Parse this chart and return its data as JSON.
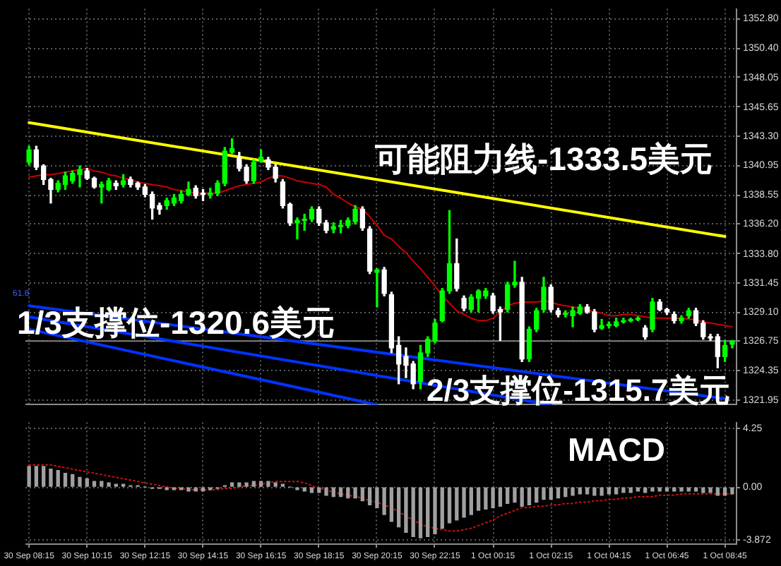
{
  "chart_data": [
    {
      "type": "candlestick",
      "categories": [
        "30 Sep 08:15",
        null,
        null,
        null,
        null,
        null,
        null,
        null,
        "30 Sep 10:15",
        null,
        null,
        null,
        null,
        null,
        null,
        null,
        "30 Sep 12:15",
        null,
        null,
        null,
        null,
        null,
        null,
        null,
        "30 Sep 14:15",
        null,
        null,
        null,
        null,
        null,
        null,
        null,
        "30 Sep 16:15",
        null,
        null,
        null,
        null,
        null,
        null,
        null,
        "30 Sep 18:15",
        null,
        null,
        null,
        null,
        null,
        null,
        null,
        "30 Sep 20:15",
        null,
        null,
        null,
        null,
        null,
        null,
        null,
        "30 Sep 22:15",
        null,
        null,
        null,
        null,
        null,
        null,
        null,
        "1 Oct 00:15",
        null,
        null,
        null,
        null,
        null,
        null,
        null,
        "1 Oct 02:15",
        null,
        null,
        null,
        null,
        null,
        null,
        null,
        "1 Oct 04:15",
        null,
        null,
        null,
        null,
        null,
        null,
        null,
        "1 Oct 06:45",
        null,
        null,
        null,
        null,
        null,
        null,
        null,
        "1 Oct 08:45",
        null
      ],
      "ohlc": [
        [
          1341.2,
          1342.5,
          1341.0,
          1342.2
        ],
        [
          1342.2,
          1342.5,
          1340.6,
          1340.8
        ],
        [
          1340.9,
          1341.0,
          1339.4,
          1339.8
        ],
        [
          1339.8,
          1339.9,
          1337.9,
          1339.0
        ],
        [
          1339.0,
          1339.7,
          1338.8,
          1339.5
        ],
        [
          1339.4,
          1340.4,
          1339.0,
          1340.1
        ],
        [
          1339.7,
          1340.5,
          1339.5,
          1340.3
        ],
        [
          1340.2,
          1340.9,
          1339.2,
          1340.6
        ],
        [
          1340.5,
          1340.7,
          1339.8,
          1339.9
        ],
        [
          1339.9,
          1340.0,
          1339.1,
          1339.2
        ],
        [
          1339.2,
          1339.6,
          1337.9,
          1339.4
        ],
        [
          1339.0,
          1339.9,
          1338.9,
          1339.7
        ],
        [
          1339.5,
          1339.7,
          1339.0,
          1339.3
        ],
        [
          1339.4,
          1340.2,
          1339.2,
          1339.7
        ],
        [
          1339.8,
          1340.0,
          1339.2,
          1339.4
        ],
        [
          1339.5,
          1339.6,
          1339.0,
          1339.2
        ],
        [
          1339.2,
          1339.4,
          1338.4,
          1338.6
        ],
        [
          1338.6,
          1338.8,
          1336.6,
          1337.5
        ],
        [
          1337.7,
          1337.9,
          1337.0,
          1337.4
        ],
        [
          1337.7,
          1338.3,
          1337.4,
          1338.1
        ],
        [
          1337.9,
          1338.6,
          1337.7,
          1338.3
        ],
        [
          1338.1,
          1338.9,
          1337.9,
          1338.6
        ],
        [
          1338.6,
          1339.6,
          1338.5,
          1339.0
        ],
        [
          1339.1,
          1339.3,
          1338.3,
          1338.5
        ],
        [
          1338.7,
          1339.0,
          1338.1,
          1338.6
        ],
        [
          1338.6,
          1339.1,
          1338.3,
          1338.7
        ],
        [
          1338.7,
          1339.7,
          1338.5,
          1339.5
        ],
        [
          1339.5,
          1342.4,
          1339.3,
          1342.1
        ],
        [
          1342.0,
          1343.1,
          1341.9,
          1342.3
        ],
        [
          1341.5,
          1342.0,
          1340.5,
          1340.7
        ],
        [
          1340.8,
          1341.0,
          1339.5,
          1339.7
        ],
        [
          1339.7,
          1341.4,
          1339.5,
          1341.2
        ],
        [
          1341.3,
          1342.2,
          1341.2,
          1341.6
        ],
        [
          1341.4,
          1341.6,
          1340.6,
          1340.8
        ],
        [
          1340.8,
          1341.0,
          1339.6,
          1339.9
        ],
        [
          1339.6,
          1339.8,
          1337.5,
          1337.7
        ],
        [
          1337.8,
          1337.9,
          1336.1,
          1336.3
        ],
        [
          1336.3,
          1336.7,
          1335.0,
          1336.5
        ],
        [
          1336.5,
          1337.0,
          1335.7,
          1336.6
        ],
        [
          1336.6,
          1337.6,
          1336.4,
          1337.4
        ],
        [
          1337.4,
          1337.6,
          1336.1,
          1336.3
        ],
        [
          1336.3,
          1336.5,
          1335.5,
          1335.7
        ],
        [
          1335.8,
          1336.3,
          1335.5,
          1336.0
        ],
        [
          1336.0,
          1336.5,
          1335.5,
          1336.1
        ],
        [
          1336.1,
          1336.7,
          1335.9,
          1336.5
        ],
        [
          1336.4,
          1337.7,
          1336.2,
          1337.4
        ],
        [
          1337.4,
          1337.6,
          1335.7,
          1335.9
        ],
        [
          1335.8,
          1336.0,
          1332.2,
          1332.4
        ],
        [
          1332.3,
          1332.6,
          1329.5,
          1332.5
        ],
        [
          1332.5,
          1332.7,
          1330.4,
          1330.6
        ],
        [
          1330.5,
          1330.7,
          1325.8,
          1326.2
        ],
        [
          1326.4,
          1327.1,
          1323.3,
          1324.9
        ],
        [
          1325.5,
          1326.2,
          1323.8,
          1324.8
        ],
        [
          1324.9,
          1325.1,
          1322.9,
          1323.3
        ],
        [
          1323.5,
          1326.4,
          1322.9,
          1325.8
        ],
        [
          1325.8,
          1327.1,
          1325.5,
          1326.9
        ],
        [
          1326.8,
          1328.5,
          1326.6,
          1328.2
        ],
        [
          1328.4,
          1331.0,
          1328.3,
          1330.8
        ],
        [
          1330.8,
          1337.3,
          1330.6,
          1333.0
        ],
        [
          1333.0,
          1335.0,
          1330.8,
          1331.0
        ],
        [
          1330.2,
          1330.4,
          1329.2,
          1329.4
        ],
        [
          1329.3,
          1330.5,
          1329.1,
          1330.3
        ],
        [
          1330.2,
          1330.9,
          1329.1,
          1330.8
        ],
        [
          1330.4,
          1331.0,
          1330.2,
          1330.8
        ],
        [
          1330.4,
          1330.6,
          1329.0,
          1329.2
        ],
        [
          1329.3,
          1329.5,
          1326.8,
          1329.1
        ],
        [
          1329.3,
          1331.5,
          1329.1,
          1331.3
        ],
        [
          1331.3,
          1333.2,
          1331.1,
          1331.5
        ],
        [
          1331.5,
          1331.9,
          1325.1,
          1325.3
        ],
        [
          1325.3,
          1327.9,
          1325.1,
          1327.7
        ],
        [
          1327.7,
          1329.4,
          1327.5,
          1329.2
        ],
        [
          1329.3,
          1331.9,
          1329.1,
          1331.1
        ],
        [
          1331.1,
          1331.3,
          1329.1,
          1329.3
        ],
        [
          1329.2,
          1329.4,
          1328.7,
          1328.9
        ],
        [
          1328.9,
          1329.2,
          1328.7,
          1329.0
        ],
        [
          1328.8,
          1329.5,
          1327.9,
          1329.2
        ],
        [
          1329.0,
          1329.7,
          1328.9,
          1329.5
        ],
        [
          1329.5,
          1329.7,
          1329.0,
          1329.1
        ],
        [
          1329.1,
          1329.3,
          1327.5,
          1327.7
        ],
        [
          1327.8,
          1328.5,
          1327.7,
          1328.0
        ],
        [
          1328.0,
          1328.3,
          1327.8,
          1328.1
        ],
        [
          1328.0,
          1328.6,
          1327.9,
          1328.3
        ],
        [
          1328.3,
          1328.6,
          1328.2,
          1328.4
        ],
        [
          1328.4,
          1328.6,
          1328.3,
          1328.5
        ],
        [
          1328.5,
          1328.7,
          1328.4,
          1328.6
        ],
        [
          1327.8,
          1328.0,
          1326.9,
          1327.1
        ],
        [
          1327.7,
          1330.2,
          1327.5,
          1329.9
        ],
        [
          1329.9,
          1330.1,
          1329.2,
          1329.3
        ],
        [
          1329.3,
          1329.4,
          1328.9,
          1329.1
        ],
        [
          1328.9,
          1329.1,
          1328.2,
          1328.4
        ],
        [
          1328.4,
          1328.8,
          1328.2,
          1328.6
        ],
        [
          1328.8,
          1329.4,
          1328.6,
          1329.2
        ],
        [
          1329.2,
          1329.4,
          1328.0,
          1328.2
        ],
        [
          1328.2,
          1328.4,
          1326.9,
          1327.1
        ],
        [
          1327.1,
          1327.3,
          1326.8,
          1327.0
        ],
        [
          1327.1,
          1327.3,
          1324.6,
          1325.5
        ],
        [
          1325.5,
          1326.8,
          1325.1,
          1326.4
        ],
        [
          1326.5,
          1326.8,
          1326.2,
          1326.75
        ]
      ],
      "colors": [
        "#00ff00",
        "#ffffff",
        "#ffffff",
        "#ffffff",
        "#00ff00",
        "#00ff00",
        "#00ff00",
        "#00ff00",
        "#ffffff",
        "#ffffff",
        "#00ff00",
        "#00ff00",
        "#ffffff",
        "#00ff00",
        "#ffffff",
        "#ffffff",
        "#ffffff",
        "#ffffff",
        "#ffffff",
        "#00ff00",
        "#00ff00",
        "#00ff00",
        "#00ff00",
        "#ffffff",
        "#ffffff",
        "#00ff00",
        "#00ff00",
        "#00ff00",
        "#00ff00",
        "#ffffff",
        "#ffffff",
        "#00ff00",
        "#00ff00",
        "#ffffff",
        "#ffffff",
        "#ffffff",
        "#ffffff",
        "#00ff00",
        "#00ff00",
        "#00ff00",
        "#ffffff",
        "#ffffff",
        "#00ff00",
        "#00ff00",
        "#00ff00",
        "#00ff00",
        "#ffffff",
        "#ffffff",
        "#00ff00",
        "#ffffff",
        "#ffffff",
        "#ffffff",
        "#ffffff",
        "#ffffff",
        "#00ff00",
        "#00ff00",
        "#00ff00",
        "#00ff00",
        "#00ff00",
        "#ffffff",
        "#ffffff",
        "#00ff00",
        "#00ff00",
        "#00ff00",
        "#ffffff",
        "#ffffff",
        "#00ff00",
        "#00ff00",
        "#ffffff",
        "#00ff00",
        "#00ff00",
        "#00ff00",
        "#ffffff",
        "#ffffff",
        "#00ff00",
        "#00ff00",
        "#00ff00",
        "#ffffff",
        "#ffffff",
        "#00ff00",
        "#00ff00",
        "#00ff00",
        "#00ff00",
        "#00ff00",
        "#00ff00",
        "#ffffff",
        "#00ff00",
        "#ffffff",
        "#ffffff",
        "#ffffff",
        "#00ff00",
        "#00ff00",
        "#ffffff",
        "#ffffff",
        "#ffffff",
        "#ffffff",
        "#00ff00",
        "#00ff00"
      ],
      "series": [
        {
          "type": "line",
          "color": "#cc0000",
          "values": [
            1340.0,
            1340.1,
            1340.2,
            1340.2,
            1340.3,
            1340.4,
            1340.5,
            1340.6,
            1340.7,
            1340.5,
            1340.4,
            1340.2,
            1340.1,
            1339.9,
            1339.8,
            1339.6,
            1339.5,
            1339.4,
            1339.3,
            1339.2,
            1339.0,
            1338.9,
            1338.8,
            1338.7,
            1338.7,
            1338.7,
            1338.7,
            1338.9,
            1339.1,
            1339.3,
            1339.4,
            1339.5,
            1339.6,
            1339.9,
            1340.1,
            1340.1,
            1339.9,
            1339.7,
            1339.6,
            1339.5,
            1339.4,
            1339.2,
            1338.6,
            1338.3,
            1337.9,
            1337.6,
            1337.4,
            1336.8,
            1336.1,
            1335.3,
            1335.0,
            1334.4,
            1333.9,
            1333.2,
            1332.6,
            1331.9,
            1331.2,
            1330.4,
            1329.8,
            1329.2,
            1328.9,
            1328.6,
            1328.4,
            1328.4,
            1328.6,
            1329.1,
            1329.6,
            1329.8,
            1329.9,
            1329.9,
            1329.9,
            1330.0,
            1329.9,
            1329.7,
            1329.6,
            1329.5,
            1329.4,
            1329.3,
            1329.1,
            1329.0,
            1328.8,
            1328.8,
            1328.9,
            1328.9,
            1328.8,
            1328.7,
            1328.6,
            1328.6,
            1328.6,
            1328.6,
            1328.6,
            1328.5,
            1328.5,
            1328.3,
            1328.2,
            1328.1,
            1328.0,
            1327.9
          ]
        },
        {
          "type": "line",
          "color": "#ffff00",
          "x": [
            "30 Sep 08:15",
            "1 Oct 08:45"
          ],
          "values": [
            1344.4,
            1335.2
          ]
        },
        {
          "type": "line",
          "color": "#0033ff",
          "x": [
            "30 Sep 08:15",
            "1 Oct 08:45"
          ],
          "values": [
            1329.6,
            1322.1
          ]
        },
        {
          "type": "line",
          "color": "#0033ff",
          "x": [
            "30 Sep 08:15",
            "1 Oct 02:15"
          ],
          "values": [
            1328.7,
            1321.6
          ]
        },
        {
          "type": "line",
          "color": "#0033ff",
          "x": [
            "30 Sep 08:15",
            "30 Sep 20:15"
          ],
          "values": [
            1327.7,
            1321.6
          ]
        }
      ],
      "ylim": [
        1321.6,
        1353.6
      ],
      "yticks": [
        1321.95,
        1324.35,
        1326.75,
        {
          "value": 1329.1,
          "label": "1329.10"
        },
        1331.45,
        {
          "value": 1333.8,
          "label": "1333.80"
        },
        {
          "value": 1336.2,
          "label": "1336.20"
        },
        1338.55,
        1340.95,
        {
          "value": 1343.3,
          "label": "1343.30"
        },
        1345.65,
        1348.05,
        {
          "value": 1350.4,
          "label": "1350.40"
        },
        {
          "value": 1352.8,
          "label": "1352.80"
        }
      ],
      "ref_lines": [
        {
          "axis": "y",
          "value": 1326.75,
          "color": "#808080"
        }
      ],
      "annotations": [
        "可能阻力线-1333.5美元",
        "1/3支撑位-1320.6美元",
        "2/3支撑位-1315.7美元",
        "61.8"
      ],
      "grid": true,
      "tick_labels": "y"
    },
    {
      "type": "bar",
      "categories": [
        "30 Sep 08:15",
        null,
        null,
        null,
        null,
        null,
        null,
        null,
        "30 Sep 10:15",
        null,
        null,
        null,
        null,
        null,
        null,
        null,
        "30 Sep 12:15",
        null,
        null,
        null,
        null,
        null,
        null,
        null,
        "30 Sep 14:15",
        null,
        null,
        null,
        null,
        null,
        null,
        null,
        "30 Sep 16:15",
        null,
        null,
        null,
        null,
        null,
        null,
        null,
        "30 Sep 18:15",
        null,
        null,
        null,
        null,
        null,
        null,
        null,
        "30 Sep 20:15",
        null,
        null,
        null,
        null,
        null,
        null,
        null,
        "30 Sep 22:15",
        null,
        null,
        null,
        null,
        null,
        null,
        null,
        "1 Oct 00:15",
        null,
        null,
        null,
        null,
        null,
        null,
        null,
        "1 Oct 02:15",
        null,
        null,
        null,
        null,
        null,
        null,
        null,
        "1 Oct 04:15",
        null,
        null,
        null,
        null,
        null,
        null,
        null,
        "1 Oct 06:45",
        null,
        null,
        null,
        null,
        null,
        null,
        null,
        "1 Oct 08:45",
        null
      ],
      "series": [
        {
          "color": "#a0a0a0",
          "values": [
            1.5,
            1.5,
            1.5,
            1.3,
            1.2,
            1.0,
            0.9,
            0.7,
            0.6,
            0.4,
            0.4,
            0.3,
            0.2,
            0.2,
            0.1,
            0.1,
            0.0,
            -0.1,
            -0.1,
            -0.2,
            -0.2,
            -0.2,
            -0.3,
            -0.3,
            -0.3,
            -0.2,
            -0.1,
            0.1,
            0.3,
            0.3,
            0.3,
            0.4,
            0.4,
            0.4,
            0.3,
            0.2,
            0.0,
            -0.2,
            -0.3,
            -0.4,
            -0.4,
            -0.6,
            -0.7,
            -0.7,
            -0.8,
            -0.8,
            -1.0,
            -1.3,
            -1.5,
            -2.0,
            -2.5,
            -2.9,
            -3.3,
            -3.6,
            -3.7,
            -3.6,
            -3.4,
            -3.0,
            -2.6,
            -2.4,
            -2.2,
            -2.0,
            -1.7,
            -1.6,
            -1.5,
            -1.4,
            -1.2,
            -1.1,
            -1.4,
            -1.3,
            -1.1,
            -0.9,
            -0.9,
            -0.8,
            -0.7,
            -0.6,
            -0.5,
            -0.5,
            -0.6,
            -0.6,
            -0.5,
            -0.5,
            -0.4,
            -0.4,
            -0.3,
            -0.4,
            -0.3,
            -0.3,
            -0.3,
            -0.3,
            -0.3,
            -0.3,
            -0.3,
            -0.4,
            -0.4,
            -0.6,
            -0.6,
            -0.5
          ]
        },
        {
          "type": "line",
          "color": "#cc1010",
          "line_style": "dotted",
          "values": [
            1.6,
            1.6,
            1.6,
            1.6,
            1.5,
            1.4,
            1.3,
            1.2,
            1.1,
            1.0,
            0.9,
            0.8,
            0.7,
            0.6,
            0.5,
            0.4,
            0.3,
            0.2,
            0.1,
            0.0,
            -0.1,
            -0.1,
            -0.2,
            -0.2,
            -0.2,
            -0.2,
            -0.2,
            -0.1,
            -0.1,
            0.0,
            0.1,
            0.1,
            0.2,
            0.3,
            0.4,
            0.4,
            0.4,
            0.4,
            0.3,
            0.1,
            -0.1,
            -0.2,
            -0.4,
            -0.5,
            -0.6,
            -0.7,
            -0.8,
            -1.0,
            -1.1,
            -1.3,
            -1.5,
            -1.8,
            -2.1,
            -2.4,
            -2.7,
            -2.9,
            -3.0,
            -3.1,
            -3.2,
            -3.2,
            -3.1,
            -3.0,
            -2.8,
            -2.6,
            -2.4,
            -2.1,
            -1.9,
            -1.7,
            -1.5,
            -1.5,
            -1.4,
            -1.4,
            -1.3,
            -1.3,
            -1.2,
            -1.2,
            -1.1,
            -1.1,
            -1.0,
            -1.0,
            -0.9,
            -0.9,
            -0.8,
            -0.8,
            -0.7,
            -0.7,
            -0.7,
            -0.6,
            -0.6,
            -0.6,
            -0.5,
            -0.5,
            -0.5,
            -0.5,
            -0.5,
            -0.5,
            -0.5,
            -0.5
          ]
        }
      ],
      "ylim": [
        -4.1,
        4.7
      ],
      "yticks": [
        -3.872,
        {
          "value": 0,
          "label": "0.00"
        },
        4.25
      ],
      "annotations": [
        "MACD"
      ],
      "grid": true
    }
  ]
}
